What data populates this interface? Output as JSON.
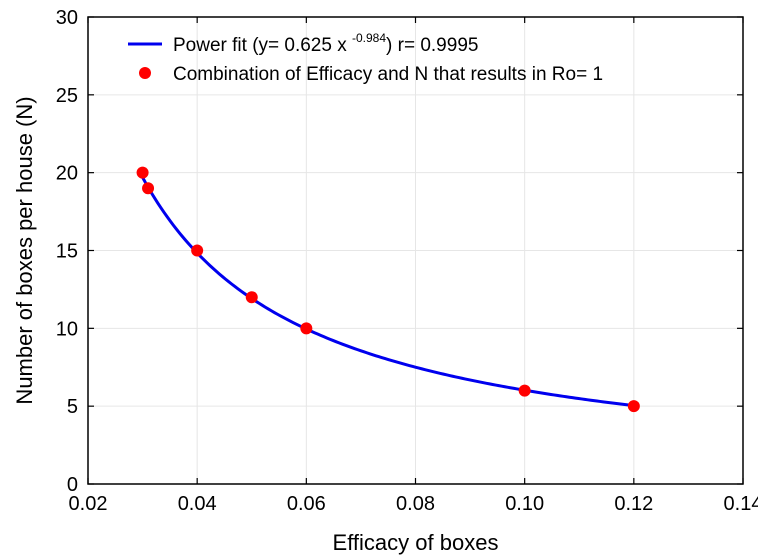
{
  "chart_data": {
    "type": "scatter",
    "xlabel": "Efficacy of boxes",
    "ylabel": "Number of boxes per house (N)",
    "xlim": [
      0.02,
      0.14
    ],
    "ylim": [
      0,
      30
    ],
    "x_ticks": [
      "0.02",
      "0.04",
      "0.06",
      "0.08",
      "0.10",
      "0.12",
      "0.14"
    ],
    "y_ticks": [
      "0",
      "5",
      "10",
      "15",
      "20",
      "25",
      "30"
    ],
    "grid": true,
    "legend_position": "top-left",
    "series": [
      {
        "name": "Combination of Efficacy and N that results in Ro= 1",
        "kind": "scatter",
        "color": "#ff0000",
        "points": [
          {
            "x": 0.03,
            "y": 20
          },
          {
            "x": 0.031,
            "y": 19
          },
          {
            "x": 0.04,
            "y": 15
          },
          {
            "x": 0.05,
            "y": 12
          },
          {
            "x": 0.06,
            "y": 10
          },
          {
            "x": 0.1,
            "y": 6
          },
          {
            "x": 0.12,
            "y": 5
          }
        ]
      },
      {
        "kind": "line",
        "color": "#0000ee",
        "fit": {
          "type": "power",
          "a": 0.625,
          "b": -0.984,
          "x_range": [
            0.03,
            0.12
          ]
        }
      }
    ],
    "legend": {
      "fit_label_pre": "Power fit (y= 0.625 x ",
      "fit_label_exp": "-0.984",
      "fit_label_post": ") r= 0.9995",
      "points_label": "Combination of Efficacy and N that results in Ro= 1"
    }
  }
}
